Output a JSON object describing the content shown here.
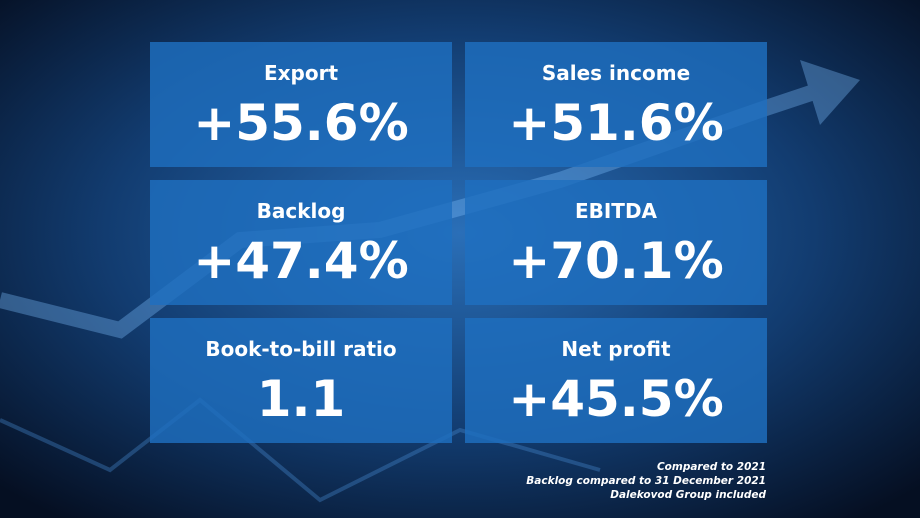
{
  "tiles": [
    {
      "label": "Export",
      "value": "+55.6%"
    },
    {
      "label": "Sales income",
      "value": "+51.6%"
    },
    {
      "label": "Backlog",
      "value": "+47.4%"
    },
    {
      "label": "EBITDA",
      "value": "+70.1%"
    },
    {
      "label": "Book-to-bill ratio",
      "value": "1.1"
    },
    {
      "label": "Net profit",
      "value": "+45.5%"
    }
  ],
  "footnotes": [
    "Compared to 2021",
    "Backlog compared to 31 December 2021",
    "Dalekovod Group included"
  ]
}
